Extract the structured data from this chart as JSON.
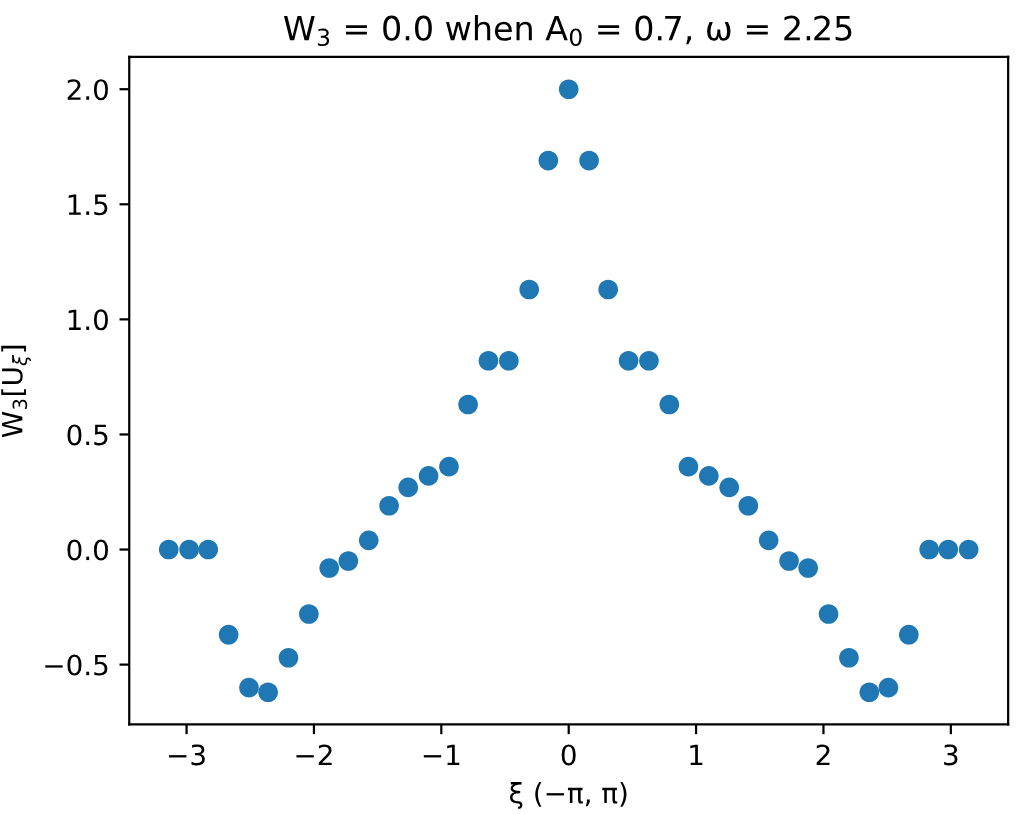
{
  "chart_data": {
    "type": "scatter",
    "title": "W$_{3}$ = 0.0 when A$_{0}$ = 0.7, ω = 2.25",
    "xlabel": "ξ (−π, π)",
    "ylabel": "W$_{3}$[U$_{ξ}$]",
    "x": [
      -3.14,
      -2.98,
      -2.83,
      -2.67,
      -2.51,
      -2.36,
      -2.2,
      -2.04,
      -1.88,
      -1.73,
      -1.57,
      -1.41,
      -1.26,
      -1.1,
      -0.94,
      -0.79,
      -0.63,
      -0.47,
      -0.31,
      -0.16,
      0,
      0.16,
      0.31,
      0.47,
      0.63,
      0.79,
      0.94,
      1.1,
      1.26,
      1.41,
      1.57,
      1.73,
      1.88,
      2.04,
      2.2,
      2.36,
      2.51,
      2.67,
      2.83,
      2.98,
      3.14
    ],
    "series": [
      {
        "color": "#1f77b4",
        "values": [
          0,
          0,
          0,
          -0.37,
          -0.6,
          -0.62,
          -0.47,
          -0.28,
          -0.08,
          -0.05,
          0.04,
          0.19,
          0.27,
          0.32,
          0.36,
          0.63,
          0.82,
          0.82,
          1.13,
          1.69,
          2.0,
          1.69,
          1.13,
          0.82,
          0.82,
          0.63,
          0.36,
          0.32,
          0.27,
          0.19,
          0.04,
          -0.05,
          -0.08,
          -0.28,
          -0.47,
          -0.62,
          -0.6,
          -0.37,
          0,
          0,
          0
        ]
      }
    ],
    "xlim": [
      -3.45,
      3.45
    ],
    "ylim": [
      -0.76,
      2.14
    ],
    "xticks": [
      {
        "value": -3,
        "label": "−3"
      },
      {
        "value": -2,
        "label": "−2"
      },
      {
        "value": -1,
        "label": "−1"
      },
      0,
      1,
      2,
      3
    ],
    "yticks": [
      {
        "value": -0.5,
        "label": "−0.5"
      },
      {
        "value": 0,
        "label": "0.0"
      },
      0.5,
      {
        "value": 1,
        "label": "1.0"
      },
      1.5,
      {
        "value": 2,
        "label": "2.0"
      }
    ],
    "marker": "circle",
    "grid": false,
    "legend": false
  }
}
